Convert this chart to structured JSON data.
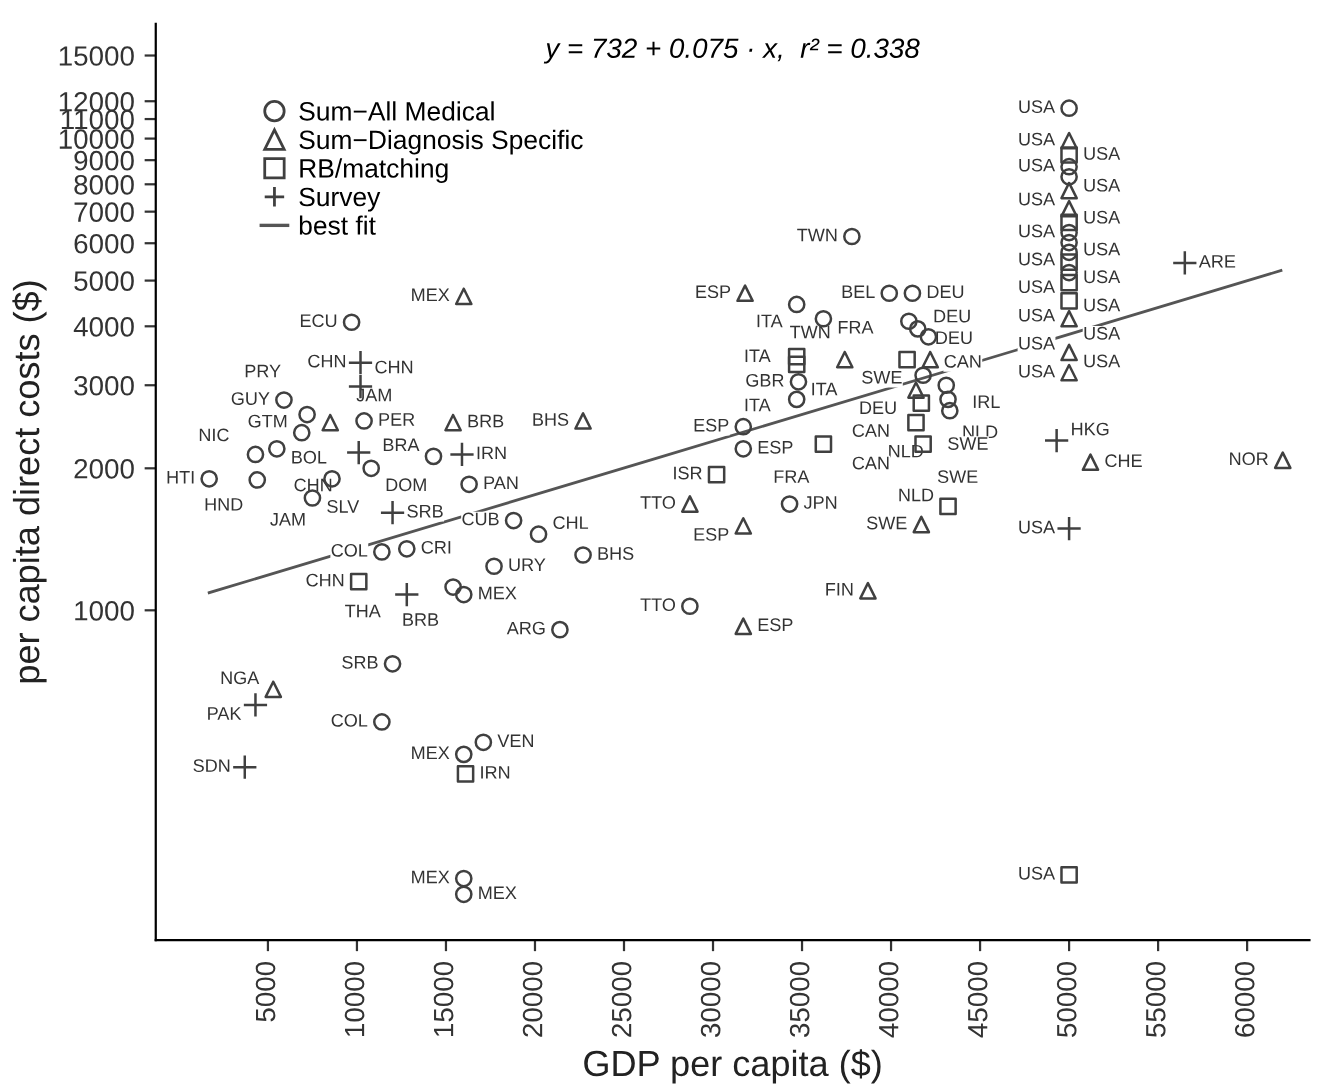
{
  "chart_data": {
    "type": "scatter",
    "xlabel": "GDP per capita ($)",
    "ylabel": "per capita direct costs ($)",
    "log": "y",
    "xlim": [
      -1300,
      63500
    ],
    "ylim": [
      200,
      17500
    ],
    "xticks": [
      5000,
      10000,
      15000,
      20000,
      25000,
      30000,
      35000,
      40000,
      45000,
      50000,
      55000,
      60000
    ],
    "yticks": [
      1000,
      2000,
      3000,
      4000,
      5000,
      6000,
      7000,
      8000,
      9000,
      10000,
      11000,
      12000,
      15000
    ],
    "grid": false,
    "legend": "top left",
    "series": [
      {
        "name": "Sum−All Medical",
        "marker": "circle",
        "color": "#404040",
        "x": [
          50000,
          50000,
          50000,
          50000,
          50000,
          50000,
          50000,
          37800,
          39900,
          41200,
          34700,
          36200,
          41000,
          41500,
          42100,
          41800,
          43100,
          43200,
          43300,
          34800,
          34700,
          31700,
          31700,
          34300,
          28700,
          9700,
          5900,
          7200,
          10400,
          6900,
          4300,
          5500,
          14300,
          10800,
          8600,
          1700,
          4400,
          7500,
          16300,
          18800,
          20200,
          22700,
          12800,
          11400,
          17700,
          15400,
          16000,
          21400,
          12000,
          11400,
          17100,
          16000,
          16000,
          16000
        ],
        "values": [
          11600,
          8720,
          8300,
          6320,
          6020,
          5740,
          5200,
          6200,
          4700,
          4700,
          4450,
          4150,
          4100,
          3950,
          3800,
          3150,
          3000,
          2800,
          2650,
          3050,
          2800,
          2450,
          2200,
          1680,
          1020,
          4080,
          2790,
          2600,
          2520,
          2380,
          2140,
          2200,
          2120,
          2000,
          1900,
          1900,
          1890,
          1730,
          1850,
          1550,
          1450,
          1310,
          1350,
          1330,
          1240,
          1120,
          1080,
          910,
          770,
          580,
          525,
          495,
          270,
          250
        ]
      },
      {
        "name": "Sum−Diagnosis Specific",
        "marker": "triangle",
        "color": "#404040",
        "x": [
          50000,
          50000,
          50000,
          50000,
          50000,
          50000,
          16000,
          8500,
          15400,
          22700,
          31800,
          37400,
          42200,
          41400,
          51200,
          62000,
          41700,
          38700,
          31700,
          31700,
          28700,
          5300
        ],
        "values": [
          9900,
          7760,
          7100,
          4150,
          3520,
          3190,
          4630,
          2500,
          2500,
          2520,
          4700,
          3400,
          3400,
          2930,
          2060,
          2080,
          1520,
          1100,
          925,
          1510,
          1680,
          680
        ]
      },
      {
        "name": "RB/matching",
        "marker": "square",
        "color": "#404040",
        "x": [
          50000,
          50000,
          50000,
          50000,
          50000,
          34700,
          34700,
          40900,
          41700,
          41400,
          41800,
          36200,
          30200,
          43200,
          10100,
          16100,
          50000
        ],
        "values": [
          9230,
          6640,
          5470,
          4950,
          4530,
          3450,
          3320,
          3400,
          2750,
          2500,
          2250,
          2250,
          1940,
          1660,
          1150,
          450,
          275
        ]
      },
      {
        "name": "Survey",
        "marker": "cross",
        "color": "#404040",
        "x": [
          10200,
          10200,
          10100,
          15900,
          12000,
          12800,
          4300,
          3700,
          49300,
          56500,
          50000
        ],
        "values": [
          3350,
          2980,
          2160,
          2140,
          1610,
          1080,
          630,
          465,
          2290,
          5450,
          1490
        ]
      },
      {
        "name": "best fit",
        "type": "line",
        "marker": "none",
        "color": "#555555",
        "x": [
          1700,
          26800,
          61900
        ],
        "values": [
          1090,
          2100,
          5250
        ]
      }
    ],
    "annotations": [
      "y = 732 + 0.075 · x,  r² = 0.338",
      {
        "text": "USA",
        "x": 50000,
        "y": 11600
      },
      {
        "text": "USA",
        "x": 50000,
        "y": 9900
      },
      {
        "text": "USA",
        "x": 50000,
        "y": 9230
      },
      {
        "text": "USA",
        "x": 50000,
        "y": 8720
      },
      {
        "text": "USA",
        "x": 50000,
        "y": 8300
      },
      {
        "text": "USA",
        "x": 50000,
        "y": 7760
      },
      {
        "text": "USA",
        "x": 50000,
        "y": 7100
      },
      {
        "text": "USA",
        "x": 50000,
        "y": 6640
      },
      {
        "text": "USA",
        "x": 50000,
        "y": 6320
      },
      {
        "text": "USA",
        "x": 50000,
        "y": 6020
      },
      {
        "text": "USA",
        "x": 50000,
        "y": 5740
      },
      {
        "text": "USA",
        "x": 50000,
        "y": 5470
      },
      {
        "text": "USA",
        "x": 50000,
        "y": 5200
      },
      {
        "text": "USA",
        "x": 50000,
        "y": 4950
      },
      {
        "text": "USA",
        "x": 50000,
        "y": 4530
      },
      {
        "text": "USA",
        "x": 50000,
        "y": 4150
      },
      {
        "text": "USA",
        "x": 50000,
        "y": 3520
      },
      {
        "text": "USA",
        "x": 50000,
        "y": 3190
      },
      {
        "text": "USA",
        "x": 50000,
        "y": 1490
      },
      {
        "text": "USA",
        "x": 50000,
        "y": 275
      },
      {
        "text": "TWN",
        "x": 37800,
        "y": 6200
      },
      {
        "text": "BEL",
        "x": 39900,
        "y": 4700
      },
      {
        "text": "DEU",
        "x": 41200,
        "y": 4700
      },
      {
        "text": "ITA",
        "x": 34700,
        "y": 4450
      },
      {
        "text": "FRA",
        "x": 36200,
        "y": 4150
      },
      {
        "text": "DEU",
        "x": 41000,
        "y": 4100
      },
      {
        "text": "CAN",
        "x": 41500,
        "y": 3950
      },
      {
        "text": "SWE",
        "x": 42100,
        "y": 3800
      },
      {
        "text": "DEU",
        "x": 41800,
        "y": 3150
      },
      {
        "text": "IRL",
        "x": 43100,
        "y": 3000
      },
      {
        "text": "NLD",
        "x": 43200,
        "y": 2800
      },
      {
        "text": "NLD",
        "x": 43300,
        "y": 2650
      },
      {
        "text": "GBR",
        "x": 34800,
        "y": 3050
      },
      {
        "text": "ITA",
        "x": 34700,
        "y": 2800
      },
      {
        "text": "ESP",
        "x": 31700,
        "y": 2450
      },
      {
        "text": "ESP",
        "x": 31700,
        "y": 2200
      },
      {
        "text": "JPN",
        "x": 34300,
        "y": 1680
      },
      {
        "text": "TTO",
        "x": 28700,
        "y": 1020
      },
      {
        "text": "ECU",
        "x": 9700,
        "y": 4080
      },
      {
        "text": "GUY",
        "x": 5900,
        "y": 2790
      },
      {
        "text": "PRY",
        "x": 7200,
        "y": 2600
      },
      {
        "text": "PER",
        "x": 10400,
        "y": 2520
      },
      {
        "text": "GTM",
        "x": 6900,
        "y": 2380
      },
      {
        "text": "NIC",
        "x": 4300,
        "y": 2140
      },
      {
        "text": "BOL",
        "x": 5500,
        "y": 2200
      },
      {
        "text": "BRA",
        "x": 14300,
        "y": 2120
      },
      {
        "text": "DOM",
        "x": 10800,
        "y": 2000
      },
      {
        "text": "JAM",
        "x": 8600,
        "y": 1900
      },
      {
        "text": "HTI",
        "x": 1700,
        "y": 1900
      },
      {
        "text": "HND",
        "x": 4400,
        "y": 1890
      },
      {
        "text": "SLV",
        "x": 7500,
        "y": 1730
      },
      {
        "text": "PAN",
        "x": 16300,
        "y": 1850
      },
      {
        "text": "CUB",
        "x": 18800,
        "y": 1550
      },
      {
        "text": "CHL",
        "x": 20200,
        "y": 1450
      },
      {
        "text": "BHS",
        "x": 22700,
        "y": 1310
      },
      {
        "text": "CRI",
        "x": 12800,
        "y": 1350
      },
      {
        "text": "COL",
        "x": 11400,
        "y": 1330
      },
      {
        "text": "URY",
        "x": 17700,
        "y": 1240
      },
      {
        "text": "BRB",
        "x": 15400,
        "y": 1120
      },
      {
        "text": "MEX",
        "x": 16000,
        "y": 1080
      },
      {
        "text": "ARG",
        "x": 21400,
        "y": 910
      },
      {
        "text": "SRB",
        "x": 12000,
        "y": 770
      },
      {
        "text": "COL",
        "x": 11400,
        "y": 580
      },
      {
        "text": "VEN",
        "x": 17100,
        "y": 525
      },
      {
        "text": "MEX",
        "x": 16000,
        "y": 495
      },
      {
        "text": "MEX",
        "x": 16000,
        "y": 270
      },
      {
        "text": "MEX",
        "x": 16000,
        "y": 250
      },
      {
        "text": "MEX",
        "x": 16000,
        "y": 4630
      },
      {
        "text": "JAM",
        "x": 8500,
        "y": 2500
      },
      {
        "text": "BRB",
        "x": 15400,
        "y": 2500
      },
      {
        "text": "BHS",
        "x": 22700,
        "y": 2520
      },
      {
        "text": "ESP",
        "x": 31800,
        "y": 4700
      },
      {
        "text": "TWN",
        "x": 37400,
        "y": 3400
      },
      {
        "text": "CAN",
        "x": 41400,
        "y": 2930
      },
      {
        "text": "CHE",
        "x": 51200,
        "y": 2060
      },
      {
        "text": "NOR",
        "x": 62000,
        "y": 2080
      },
      {
        "text": "SWE",
        "x": 41700,
        "y": 1520
      },
      {
        "text": "FIN",
        "x": 38700,
        "y": 1100
      },
      {
        "text": "ESP",
        "x": 31700,
        "y": 925
      },
      {
        "text": "ESP",
        "x": 31700,
        "y": 1510
      },
      {
        "text": "TTO",
        "x": 28700,
        "y": 1680
      },
      {
        "text": "NGA",
        "x": 5300,
        "y": 680
      },
      {
        "text": "ITA",
        "x": 34700,
        "y": 3450
      },
      {
        "text": "ITA",
        "x": 34700,
        "y": 3320
      },
      {
        "text": "DEU",
        "x": 40900,
        "y": 3400
      },
      {
        "text": "SWE",
        "x": 41700,
        "y": 2750
      },
      {
        "text": "CAN",
        "x": 41400,
        "y": 2500
      },
      {
        "text": "SWE",
        "x": 41800,
        "y": 2250
      },
      {
        "text": "FRA",
        "x": 36200,
        "y": 2250
      },
      {
        "text": "ISR",
        "x": 30200,
        "y": 1940
      },
      {
        "text": "NLD",
        "x": 43200,
        "y": 1660
      },
      {
        "text": "CHN",
        "x": 10100,
        "y": 1150
      },
      {
        "text": "IRN",
        "x": 16100,
        "y": 450
      },
      {
        "text": "CHN",
        "x": 10200,
        "y": 3350
      },
      {
        "text": "CHN",
        "x": 10200,
        "y": 2980
      },
      {
        "text": "CHN",
        "x": 10100,
        "y": 2160
      },
      {
        "text": "IRN",
        "x": 15900,
        "y": 2140
      },
      {
        "text": "SRB",
        "x": 12000,
        "y": 1610
      },
      {
        "text": "THA",
        "x": 12800,
        "y": 1080
      },
      {
        "text": "PAK",
        "x": 4300,
        "y": 630
      },
      {
        "text": "SDN",
        "x": 3700,
        "y": 465
      },
      {
        "text": "HKG",
        "x": 49300,
        "y": 2290
      },
      {
        "text": "ARE",
        "x": 56500,
        "y": 5450
      }
    ]
  }
}
